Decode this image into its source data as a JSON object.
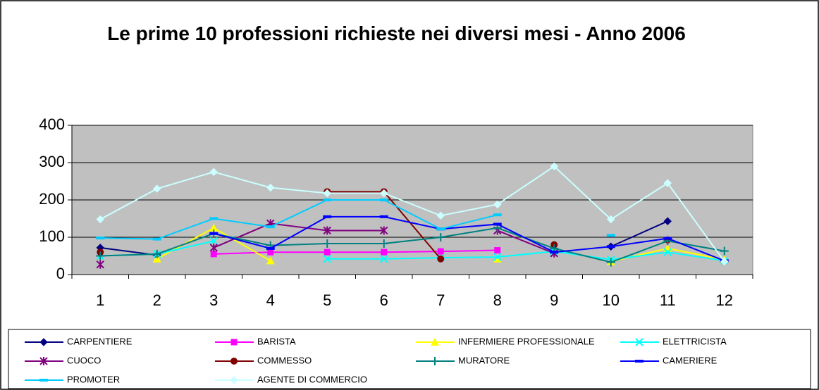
{
  "chart_data": {
    "type": "line",
    "title": "Le prime 10 professioni richieste nei diversi mesi - Anno 2006",
    "categories": [
      "1",
      "2",
      "3",
      "4",
      "5",
      "6",
      "7",
      "8",
      "9",
      "10",
      "11",
      "12"
    ],
    "ylim": [
      0,
      400
    ],
    "yticks": [
      0,
      100,
      200,
      300,
      400
    ],
    "grid": true,
    "series": [
      {
        "name": "CARPENTIERE",
        "color": "#000080",
        "marker": "diamond",
        "values": [
          72,
          52,
          null,
          null,
          null,
          null,
          null,
          null,
          null,
          75,
          143,
          null
        ]
      },
      {
        "name": "BARISTA",
        "color": "#ff00ff",
        "marker": "square",
        "values": [
          null,
          null,
          55,
          60,
          60,
          60,
          62,
          65,
          null,
          null,
          null,
          null
        ]
      },
      {
        "name": "INFERMIERE PROFESSIONALE",
        "color": "#ffff00",
        "marker": "triangle",
        "values": [
          null,
          42,
          125,
          37,
          null,
          null,
          null,
          42,
          null,
          35,
          70,
          40
        ]
      },
      {
        "name": "ELETTRICISTA",
        "color": "#00ffff",
        "marker": "x",
        "values": [
          50,
          55,
          90,
          null,
          42,
          42,
          45,
          47,
          62,
          40,
          60,
          37
        ]
      },
      {
        "name": "CUOCO",
        "color": "#800080",
        "marker": "star",
        "values": [
          27,
          null,
          72,
          137,
          118,
          118,
          null,
          118,
          57,
          null,
          null,
          null
        ]
      },
      {
        "name": "COMMESSO",
        "color": "#800000",
        "marker": "circle",
        "values": [
          60,
          null,
          null,
          null,
          222,
          222,
          42,
          null,
          80,
          null,
          93,
          null
        ]
      },
      {
        "name": "MURATORE",
        "color": "#008080",
        "marker": "plus",
        "values": [
          50,
          55,
          110,
          78,
          83,
          83,
          100,
          125,
          70,
          33,
          90,
          63
        ]
      },
      {
        "name": "CAMERIERE",
        "color": "#0000ff",
        "marker": "dash",
        "values": [
          null,
          null,
          110,
          70,
          155,
          155,
          122,
          135,
          60,
          75,
          97,
          37
        ]
      },
      {
        "name": "PROMOTER",
        "color": "#00ccff",
        "marker": "dash",
        "values": [
          98,
          95,
          150,
          128,
          200,
          200,
          122,
          160,
          null,
          105,
          null,
          null
        ]
      },
      {
        "name": "AGENTE DI COMMERCIO",
        "color": "#ccffff",
        "marker": "diamond",
        "values": [
          148,
          230,
          275,
          233,
          218,
          218,
          158,
          188,
          290,
          148,
          245,
          35
        ]
      }
    ]
  }
}
